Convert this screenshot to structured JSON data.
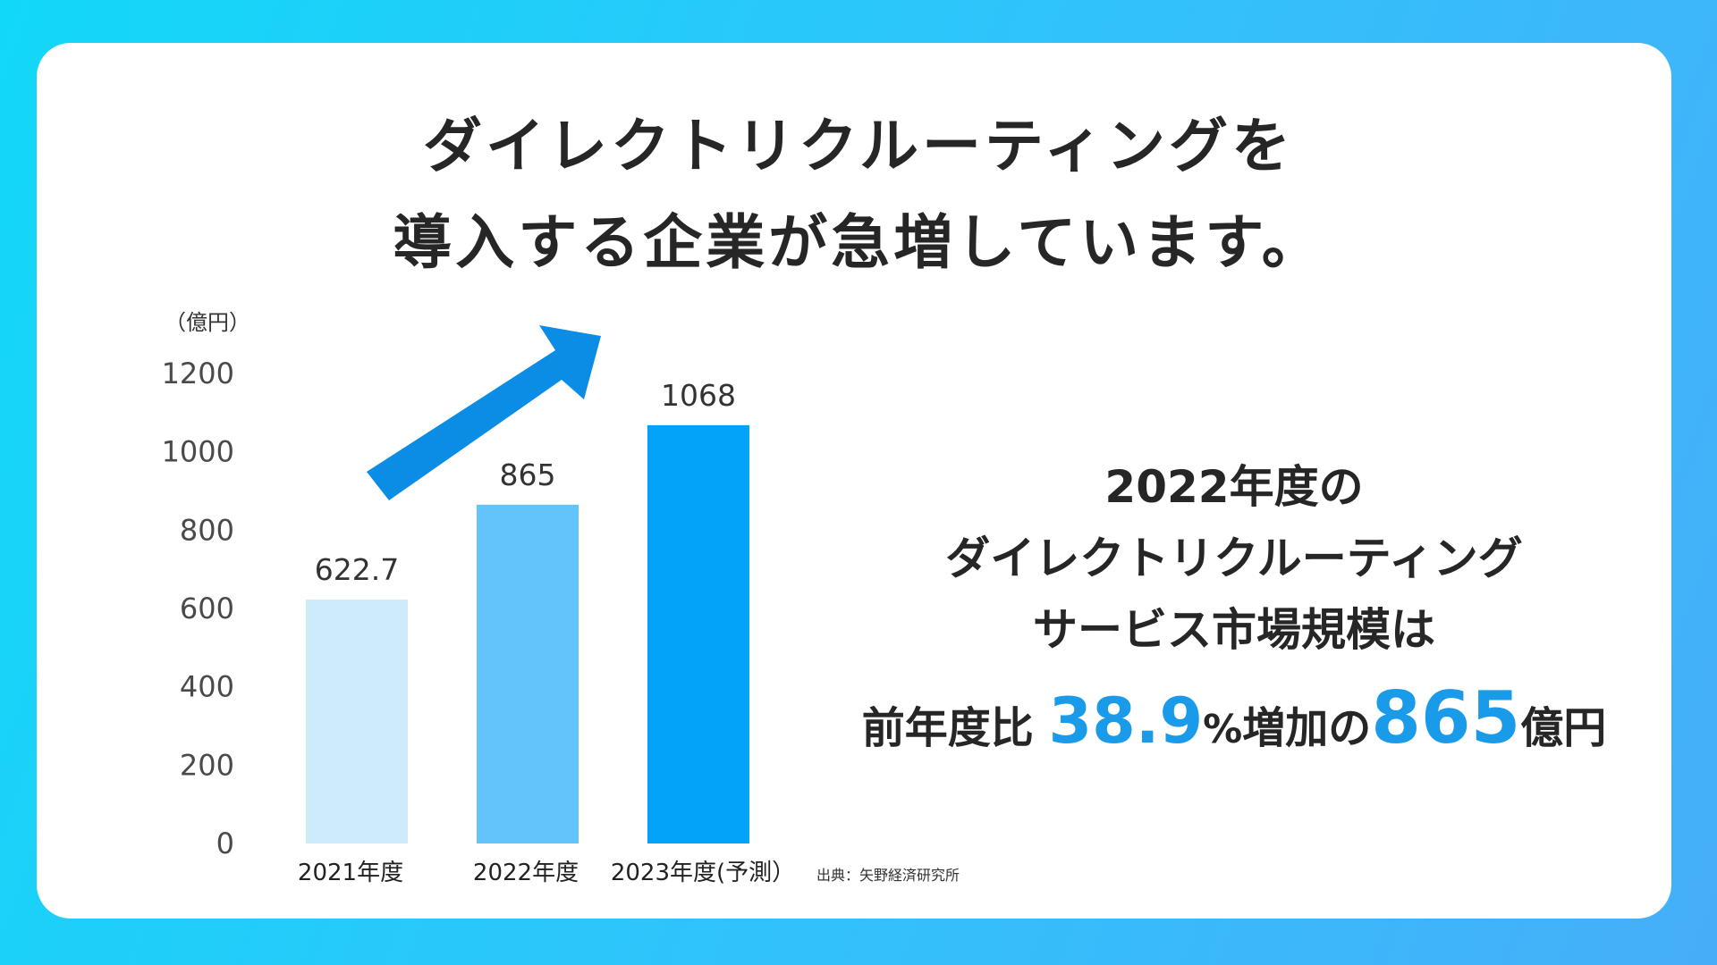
{
  "headline": {
    "line1": "ダイレクトリクルーティングを",
    "line2": "導入する企業が急増しています。"
  },
  "chart_data": {
    "type": "bar",
    "unit_label": "（億円）",
    "categories": [
      "2021年度",
      "2022年度",
      "2023年度(予測）"
    ],
    "values": [
      622.7,
      865,
      1068
    ],
    "value_labels": [
      "622.7",
      "865",
      "1068"
    ],
    "ylim": [
      0,
      1200
    ],
    "yticks": [
      0,
      200,
      400,
      600,
      800,
      1000,
      1200
    ],
    "bar_colors": [
      "#cdebfb",
      "#62c4fa",
      "#03a3fa"
    ],
    "arrow_color": "#0b8de6",
    "grid": false,
    "legend": "none",
    "source": "出典：矢野経済研究所"
  },
  "summary": {
    "line1": "2022年度の",
    "line2": "ダイレクトリクルーティング",
    "line3": "サービス市場規模は",
    "prefix": "前年度比",
    "growth": "38.9",
    "percent": "%",
    "middle": "増加の",
    "amount": "865",
    "suffix": "億円"
  }
}
